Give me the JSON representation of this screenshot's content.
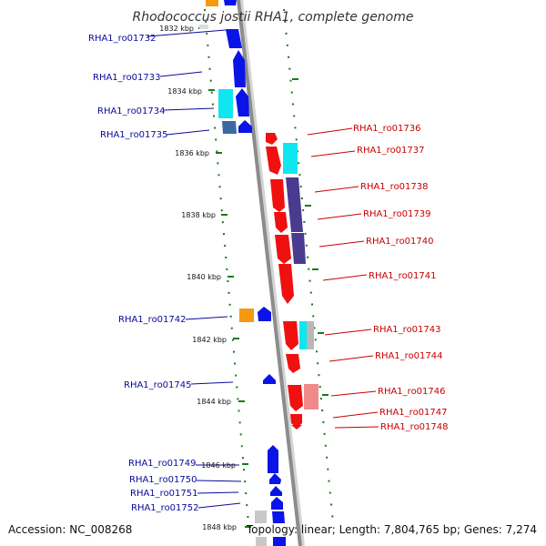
{
  "title": "Rhodococcus jostii RHA1, complete genome",
  "accession": "Accession: NC_008268",
  "topology": "Topology: linear; Length: 7,804,765 bp; Genes: 7,274",
  "colors": {
    "left_label": "#0a0a9a",
    "right_label": "#c80000",
    "blue": "#0a14e6",
    "red": "#f01010",
    "cyan": "#10e6f0",
    "purple": "#4a3a90",
    "orange": "#f59a10",
    "steel": "#3a6aa0",
    "pink": "#f08a8a",
    "grey": "#b8b8b8",
    "tick": "#1a7a1a",
    "backbone": "#8c8c8c"
  },
  "kbp_ticks": [
    {
      "label": "1832 kbp",
      "kb": 1832
    },
    {
      "label": "1834 kbp",
      "kb": 1834
    },
    {
      "label": "1836 kbp",
      "kb": 1836
    },
    {
      "label": "1838 kbp",
      "kb": 1838
    },
    {
      "label": "1840 kbp",
      "kb": 1840
    },
    {
      "label": "1842 kbp",
      "kb": 1842
    },
    {
      "label": "1844 kbp",
      "kb": 1844
    },
    {
      "label": "1846 kbp",
      "kb": 1846
    },
    {
      "label": "1848 kbp",
      "kb": 1848
    }
  ],
  "left_genes": [
    {
      "label": "RHA1_ro01732"
    },
    {
      "label": "RHA1_ro01733"
    },
    {
      "label": "RHA1_ro01734"
    },
    {
      "label": "RHA1_ro01735"
    },
    {
      "label": "RHA1_ro01742"
    },
    {
      "label": "RHA1_ro01745"
    },
    {
      "label": "RHA1_ro01749"
    },
    {
      "label": "RHA1_ro01750"
    },
    {
      "label": "RHA1_ro01751"
    },
    {
      "label": "RHA1_ro01752"
    }
  ],
  "right_genes": [
    {
      "label": "RHA1_ro01736"
    },
    {
      "label": "RHA1_ro01737"
    },
    {
      "label": "RHA1_ro01738"
    },
    {
      "label": "RHA1_ro01739"
    },
    {
      "label": "RHA1_ro01740"
    },
    {
      "label": "RHA1_ro01741"
    },
    {
      "label": "RHA1_ro01743"
    },
    {
      "label": "RHA1_ro01744"
    },
    {
      "label": "RHA1_ro01746"
    },
    {
      "label": "RHA1_ro01747"
    },
    {
      "label": "RHA1_ro01748"
    }
  ]
}
